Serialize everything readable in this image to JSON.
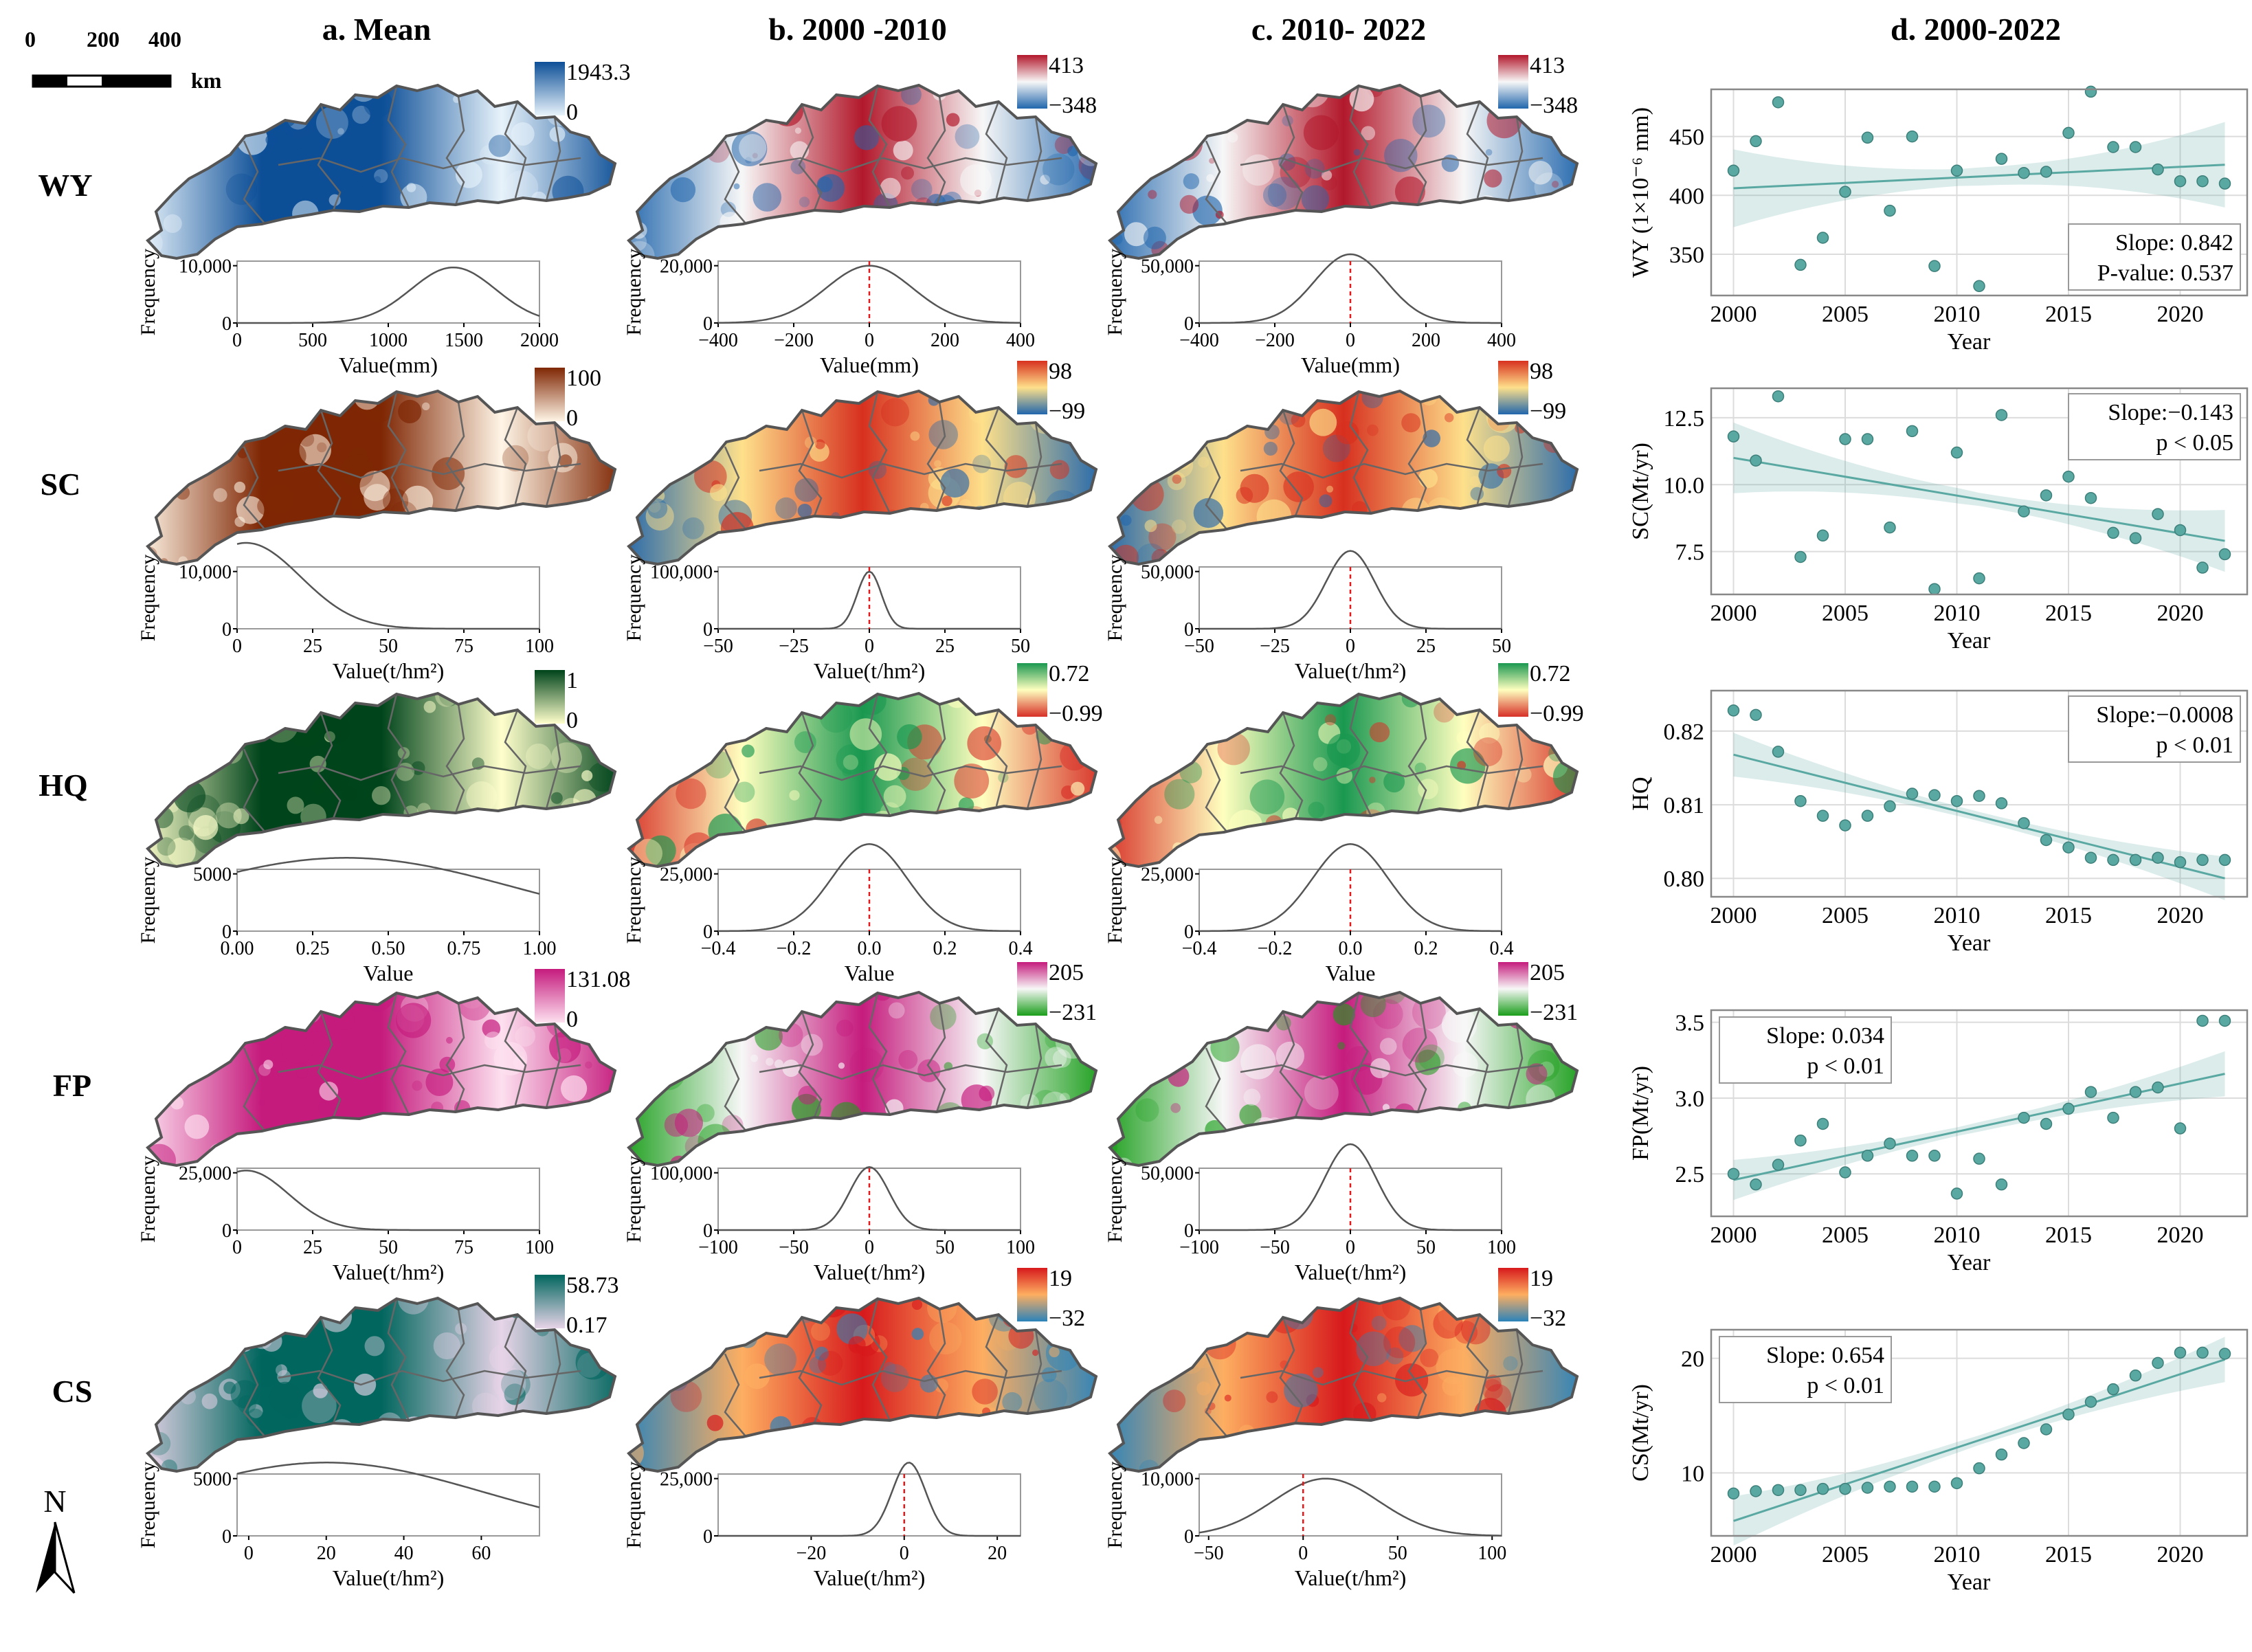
{
  "scale_bar": {
    "ticks": [
      "0",
      "200",
      "400"
    ],
    "unit": "km"
  },
  "north_label": "N",
  "column_titles": [
    "a. Mean",
    "b. 2000 -2010",
    "c. 2010- 2022",
    "d. 2000-2022"
  ],
  "row_labels": [
    "WY",
    "SC",
    "HQ",
    "FP",
    "CS"
  ],
  "maps": [
    [
      {
        "legend_max": "1943.3",
        "legend_min": "0",
        "colors": [
          "#0d4f97",
          "#e8f3fb"
        ]
      },
      {
        "legend_max": "413",
        "legend_min": "−348",
        "colors": [
          "#b2182b",
          "#f7f7f7",
          "#2166ac"
        ]
      },
      {
        "legend_max": "413",
        "legend_min": "−348",
        "colors": [
          "#b2182b",
          "#f7f7f7",
          "#2166ac"
        ]
      }
    ],
    [
      {
        "legend_max": "100",
        "legend_min": "0",
        "colors": [
          "#7f2704",
          "#fff5e6"
        ]
      },
      {
        "legend_max": "98",
        "legend_min": "−99",
        "colors": [
          "#d7301f",
          "#fee08b",
          "#2166ac"
        ]
      },
      {
        "legend_max": "98",
        "legend_min": "−99",
        "colors": [
          "#d7301f",
          "#fee08b",
          "#2166ac"
        ]
      }
    ],
    [
      {
        "legend_max": "1",
        "legend_min": "0",
        "colors": [
          "#00441b",
          "#ffffcc"
        ]
      },
      {
        "legend_max": "0.72",
        "legend_min": "−0.99",
        "colors": [
          "#1a9850",
          "#ffffbf",
          "#d73027"
        ]
      },
      {
        "legend_max": "0.72",
        "legend_min": "−0.99",
        "colors": [
          "#1a9850",
          "#ffffbf",
          "#d73027"
        ]
      }
    ],
    [
      {
        "legend_max": "131.08",
        "legend_min": "0",
        "colors": [
          "#c51b7d",
          "#fde0ef"
        ]
      },
      {
        "legend_max": "205",
        "legend_min": "−231",
        "colors": [
          "#c51b7d",
          "#f7f7f7",
          "#1b9e1b"
        ]
      },
      {
        "legend_max": "205",
        "legend_min": "−231",
        "colors": [
          "#c51b7d",
          "#f7f7f7",
          "#1b9e1b"
        ]
      }
    ],
    [
      {
        "legend_max": "58.73",
        "legend_min": "0.17",
        "colors": [
          "#01665e",
          "#e7d4e8"
        ]
      },
      {
        "legend_max": "19",
        "legend_min": "−32",
        "colors": [
          "#d7191c",
          "#fdae61",
          "#2b83ba"
        ]
      },
      {
        "legend_max": "19",
        "legend_min": "−32",
        "colors": [
          "#d7191c",
          "#fdae61",
          "#2b83ba"
        ]
      }
    ]
  ],
  "histograms": [
    [
      {
        "ylabel": "Frequency",
        "xlabel": "Value(mm)",
        "xlim": [
          0,
          2000
        ],
        "xticks": [
          "0",
          "500",
          "1000",
          "1500",
          "2000"
        ],
        "ylim": [
          0,
          10000
        ],
        "yticks": [
          "0",
          "10,000"
        ],
        "mean": 1430,
        "sd": 280,
        "peak": 9700,
        "zero_line": false
      },
      {
        "ylabel": "Frequency",
        "xlabel": "Value(mm)",
        "xlim": [
          -400,
          400
        ],
        "xticks": [
          "−400",
          "−200",
          "0",
          "200",
          "400"
        ],
        "ylim": [
          0,
          20000
        ],
        "yticks": [
          "0",
          "20,000"
        ],
        "mean": 0,
        "sd": 115,
        "peak": 20000,
        "zero_line": true
      },
      {
        "ylabel": "Frequency",
        "xlabel": "Value(mm)",
        "xlim": [
          -400,
          400
        ],
        "xticks": [
          "−400",
          "−200",
          "0",
          "200",
          "400"
        ],
        "ylim": [
          0,
          50000
        ],
        "yticks": [
          "0",
          "50,000"
        ],
        "mean": 0,
        "sd": 95,
        "peak": 60000,
        "zero_line": true
      }
    ],
    [
      {
        "ylabel": "Frequency",
        "xlabel": "Value(t/hm²)",
        "xlim": [
          0,
          100
        ],
        "xticks": [
          "0",
          "25",
          "50",
          "75",
          "100"
        ],
        "ylim": [
          0,
          10000
        ],
        "yticks": [
          "0",
          "10,000"
        ],
        "mean": 3,
        "sd": 18,
        "peak": 15000,
        "zero_line": false
      },
      {
        "ylabel": "Frequency",
        "xlabel": "Value(t/hm²)",
        "xlim": [
          -50,
          50
        ],
        "xticks": [
          "−50",
          "−25",
          "0",
          "25",
          "50"
        ],
        "ylim": [
          0,
          100000
        ],
        "yticks": [
          "0",
          "100,000"
        ],
        "mean": 0,
        "sd": 4,
        "peak": 100000,
        "zero_line": true
      },
      {
        "ylabel": "Frequency",
        "xlabel": "Value(t/hm²)",
        "xlim": [
          -50,
          50
        ],
        "xticks": [
          "−50",
          "−25",
          "0",
          "25",
          "50"
        ],
        "ylim": [
          0,
          50000
        ],
        "yticks": [
          "0",
          "50,000"
        ],
        "mean": 0,
        "sd": 8,
        "peak": 68000,
        "zero_line": true
      }
    ],
    [
      {
        "ylabel": "Frequency",
        "xlabel": "Value",
        "xlim": [
          0,
          1
        ],
        "xticks": [
          "0.00",
          "0.25",
          "0.50",
          "0.75",
          "1.00"
        ],
        "ylim": [
          0,
          5000
        ],
        "yticks": [
          "0",
          "5000"
        ],
        "mean": 0.36,
        "sd": 0.55,
        "peak": 6400,
        "zero_line": false
      },
      {
        "ylabel": "Frequency",
        "xlabel": "Value",
        "xlim": [
          -0.4,
          0.4
        ],
        "xticks": [
          "−0.4",
          "−0.2",
          "0.0",
          "0.2",
          "0.4"
        ],
        "ylim": [
          0,
          25000
        ],
        "yticks": [
          "0",
          "25,000"
        ],
        "mean": 0,
        "sd": 0.1,
        "peak": 38000,
        "zero_line": true
      },
      {
        "ylabel": "Frequency",
        "xlabel": "Value",
        "xlim": [
          -0.4,
          0.4
        ],
        "xticks": [
          "−0.4",
          "−0.2",
          "0.0",
          "0.2",
          "0.4"
        ],
        "ylim": [
          0,
          25000
        ],
        "yticks": [
          "0",
          "25,000"
        ],
        "mean": 0,
        "sd": 0.1,
        "peak": 38000,
        "zero_line": true
      }
    ],
    [
      {
        "ylabel": "Frequency",
        "xlabel": "Value(t/hm²)",
        "xlim": [
          0,
          100
        ],
        "xticks": [
          "0",
          "25",
          "50",
          "75",
          "100"
        ],
        "ylim": [
          0,
          25000
        ],
        "yticks": [
          "0",
          "25,000"
        ],
        "mean": 3,
        "sd": 14,
        "peak": 26000,
        "zero_line": false
      },
      {
        "ylabel": "Frequency",
        "xlabel": "Value(t/hm²)",
        "xlim": [
          -100,
          100
        ],
        "xticks": [
          "−100",
          "−50",
          "0",
          "50",
          "100"
        ],
        "ylim": [
          0,
          100000
        ],
        "yticks": [
          "0",
          "100,000"
        ],
        "mean": 0,
        "sd": 13,
        "peak": 110000,
        "zero_line": true
      },
      {
        "ylabel": "Frequency",
        "xlabel": "Value(t/hm²)",
        "xlim": [
          -100,
          100
        ],
        "xticks": [
          "−100",
          "−50",
          "0",
          "50",
          "100"
        ],
        "ylim": [
          0,
          50000
        ],
        "yticks": [
          "0",
          "50,000"
        ],
        "mean": 0,
        "sd": 17,
        "peak": 75000,
        "zero_line": true
      }
    ],
    [
      {
        "ylabel": "Frequency",
        "xlabel": "Value(t/hm²)",
        "xlim": [
          -3,
          75
        ],
        "xticks": [
          "0",
          "20",
          "40",
          "60"
        ],
        "xtick_values": [
          0,
          20,
          40,
          60
        ],
        "ylim": [
          0,
          5000
        ],
        "yticks": [
          "0",
          "5000"
        ],
        "mean": 20,
        "sd": 40,
        "peak": 6400,
        "zero_line": false
      },
      {
        "ylabel": "Frequency",
        "xlabel": "Value(t/hm²)",
        "xlim": [
          -40,
          25
        ],
        "xticks": [
          "−20",
          "0",
          "20"
        ],
        "xtick_values": [
          -20,
          0,
          20
        ],
        "ylim": [
          0,
          25000
        ],
        "yticks": [
          "0",
          "25,000"
        ],
        "mean": 1,
        "sd": 3.6,
        "peak": 32000,
        "zero_line": true
      },
      {
        "ylabel": "Frequency",
        "xlabel": "Value(t/hm²)",
        "xlim": [
          -55,
          105
        ],
        "xticks": [
          "−50",
          "0",
          "50",
          "100"
        ],
        "xtick_values": [
          -50,
          0,
          50,
          100
        ],
        "ylim": [
          0,
          10000
        ],
        "yticks": [
          "0",
          "10,000"
        ],
        "mean": 12,
        "sd": 28,
        "peak": 10000,
        "zero_line": true
      }
    ]
  ],
  "chart_data": [
    {
      "type": "scatter",
      "title": "WY",
      "xlabel": "Year",
      "ylabel": "WY (1×10⁻⁶ mm)",
      "xlim": [
        1999,
        2023
      ],
      "ylim": [
        315,
        490
      ],
      "xticks": [
        "2000",
        "2005",
        "2010",
        "2015",
        "2020"
      ],
      "yticks": [
        "350",
        "400",
        "450"
      ],
      "ytick_values": [
        350,
        400,
        450
      ],
      "x": [
        2000,
        2001,
        2002,
        2003,
        2004,
        2005,
        2006,
        2007,
        2008,
        2009,
        2010,
        2011,
        2012,
        2013,
        2014,
        2015,
        2016,
        2017,
        2018,
        2019,
        2020,
        2021,
        2022
      ],
      "y": [
        421,
        446,
        479,
        341,
        364,
        403,
        449,
        387,
        450,
        340,
        421,
        323,
        431,
        419,
        420,
        453,
        488,
        441,
        441,
        422,
        412,
        412,
        410
      ],
      "trend": [
        406,
        426
      ],
      "band": [
        20,
        22
      ],
      "stat_lines": [
        "Slope: 0.842",
        "P-value: 0.537"
      ],
      "stat_box": "bottom-right"
    },
    {
      "type": "scatter",
      "title": "SC",
      "xlabel": "Year",
      "ylabel": "SC(Mt/yr)",
      "xlim": [
        1999,
        2023
      ],
      "ylim": [
        5.9,
        13.6
      ],
      "xticks": [
        "2000",
        "2005",
        "2010",
        "2015",
        "2020"
      ],
      "yticks": [
        "7.5",
        "10.0",
        "12.5"
      ],
      "ytick_values": [
        7.5,
        10.0,
        12.5
      ],
      "x": [
        2000,
        2001,
        2002,
        2003,
        2004,
        2005,
        2006,
        2007,
        2008,
        2009,
        2010,
        2011,
        2012,
        2013,
        2014,
        2015,
        2016,
        2017,
        2018,
        2019,
        2020,
        2021,
        2022
      ],
      "y": [
        11.8,
        10.9,
        13.3,
        7.3,
        8.1,
        11.7,
        11.7,
        8.4,
        12.0,
        6.1,
        11.2,
        6.5,
        12.6,
        9.0,
        9.6,
        10.3,
        9.5,
        8.2,
        8.0,
        8.9,
        8.3,
        6.9,
        7.4
      ],
      "trend": [
        11.0,
        7.9
      ],
      "band": [
        0.8,
        0.7
      ],
      "stat_lines": [
        "Slope:−0.143",
        "p < 0.05"
      ],
      "stat_box": "top-right"
    },
    {
      "type": "scatter",
      "title": "HQ",
      "xlabel": "Year",
      "ylabel": "HQ",
      "xlim": [
        1999,
        2023
      ],
      "ylim": [
        0.7975,
        0.8255
      ],
      "xticks": [
        "2000",
        "2005",
        "2010",
        "2015",
        "2020"
      ],
      "yticks": [
        "0.80",
        "0.81",
        "0.82"
      ],
      "ytick_values": [
        0.8,
        0.81,
        0.82
      ],
      "x": [
        2000,
        2001,
        2002,
        2003,
        2004,
        2005,
        2006,
        2007,
        2008,
        2009,
        2010,
        2011,
        2012,
        2013,
        2014,
        2015,
        2016,
        2017,
        2018,
        2019,
        2020,
        2021,
        2022
      ],
      "y": [
        0.8228,
        0.8222,
        0.8172,
        0.8105,
        0.8085,
        0.8072,
        0.8085,
        0.8098,
        0.8115,
        0.8113,
        0.8105,
        0.8112,
        0.8102,
        0.8075,
        0.8052,
        0.8042,
        0.8028,
        0.8025,
        0.8025,
        0.8028,
        0.8022,
        0.8025,
        0.8025
      ],
      "trend": [
        0.8168,
        0.8
      ],
      "band": [
        0.0018,
        0.0018
      ],
      "stat_lines": [
        "Slope:−0.0008",
        "p < 0.01"
      ],
      "stat_box": "top-right"
    },
    {
      "type": "scatter",
      "title": "FP",
      "xlabel": "Year",
      "ylabel": "FP(Mt/yr)",
      "xlim": [
        1999,
        2023
      ],
      "ylim": [
        2.22,
        3.58
      ],
      "xticks": [
        "2000",
        "2005",
        "2010",
        "2015",
        "2020"
      ],
      "yticks": [
        "2.5",
        "3.0",
        "3.5"
      ],
      "ytick_values": [
        2.5,
        3.0,
        3.5
      ],
      "x": [
        2000,
        2001,
        2002,
        2003,
        2004,
        2005,
        2006,
        2007,
        2008,
        2009,
        2010,
        2011,
        2012,
        2013,
        2014,
        2015,
        2016,
        2017,
        2018,
        2019,
        2020,
        2021,
        2022
      ],
      "y": [
        2.5,
        2.43,
        2.56,
        2.72,
        2.83,
        2.51,
        2.62,
        2.7,
        2.62,
        2.62,
        2.37,
        2.6,
        2.43,
        2.87,
        2.83,
        2.93,
        3.04,
        2.87,
        3.04,
        3.07,
        2.8,
        3.51,
        3.51
      ],
      "trend": [
        2.46,
        3.16
      ],
      "band": [
        0.08,
        0.09
      ],
      "stat_lines": [
        "Slope: 0.034",
        "p < 0.01"
      ],
      "stat_box": "top-left"
    },
    {
      "type": "scatter",
      "title": "CS",
      "xlabel": "Year",
      "ylabel": "CS(Mt/yr)",
      "xlim": [
        1999,
        2023
      ],
      "ylim": [
        4.5,
        22.5
      ],
      "xticks": [
        "2000",
        "2005",
        "2010",
        "2015",
        "2020"
      ],
      "yticks": [
        "10",
        "20"
      ],
      "ytick_values": [
        10,
        20
      ],
      "x": [
        2000,
        2001,
        2002,
        2003,
        2004,
        2005,
        2006,
        2007,
        2008,
        2009,
        2010,
        2011,
        2012,
        2013,
        2014,
        2015,
        2016,
        2017,
        2018,
        2019,
        2020,
        2021,
        2022
      ],
      "y": [
        8.2,
        8.4,
        8.5,
        8.5,
        8.6,
        8.6,
        8.7,
        8.8,
        8.8,
        8.8,
        9.1,
        10.4,
        11.6,
        12.6,
        13.8,
        15.1,
        16.2,
        17.3,
        18.5,
        19.6,
        20.5,
        20.5,
        20.4
      ],
      "trend": [
        5.8,
        19.9
      ],
      "band": [
        1.3,
        1.2
      ],
      "stat_lines": [
        "Slope: 0.654",
        "p < 0.01"
      ],
      "stat_box": "top-left"
    }
  ]
}
